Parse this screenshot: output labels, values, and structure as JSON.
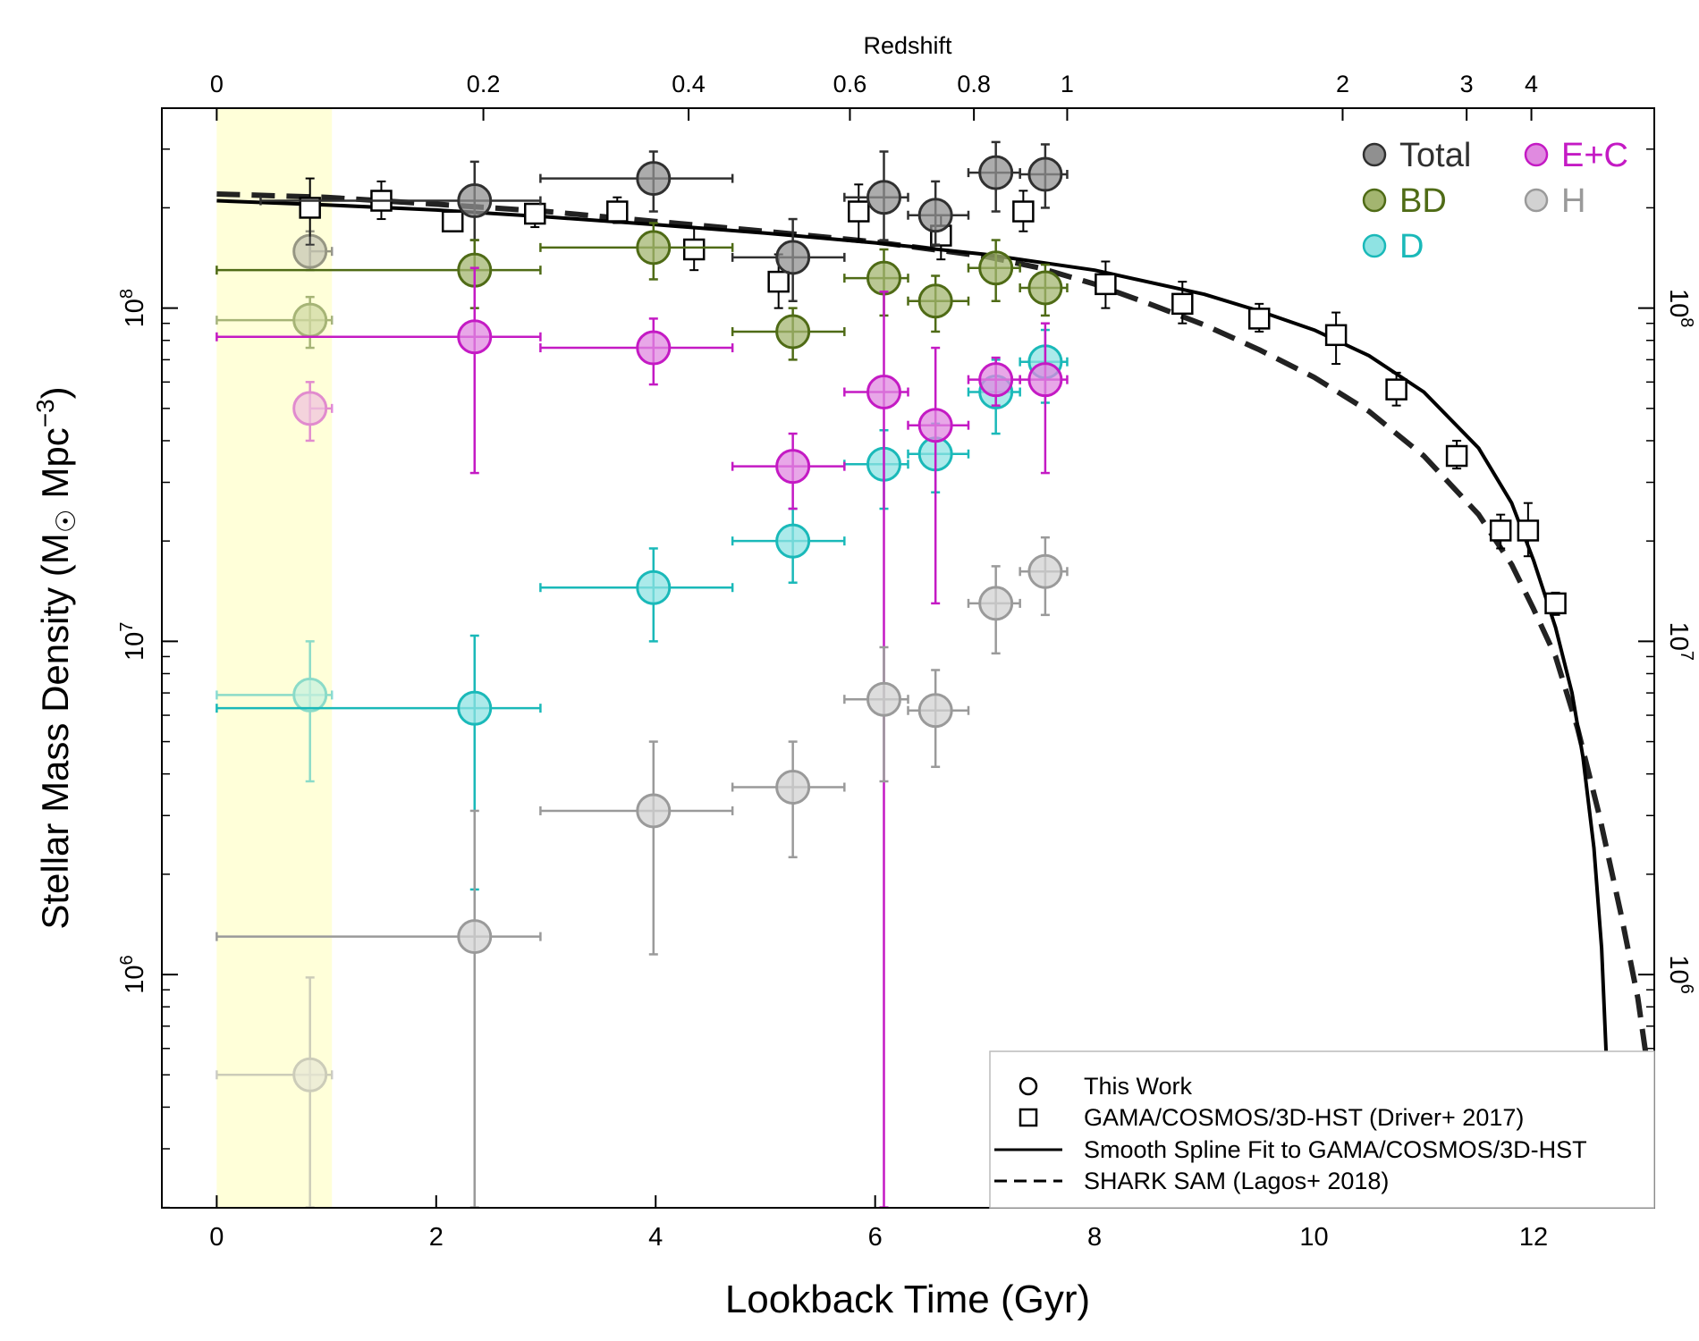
{
  "chart_data": {
    "type": "scatter",
    "xlabel": "Lookback Time (Gyr)",
    "ylabel_main": "Stellar Mass Density (M",
    "ylabel_unit": " Mpc",
    "ylabel_exp": "−3",
    "ylabel_close": ")",
    "top_axis_label": "Redshift",
    "xlim": [
      -0.5,
      13.1
    ],
    "ylim_log10": [
      5.3,
      8.6
    ],
    "x_ticks": [
      0,
      2,
      4,
      6,
      8,
      10,
      12
    ],
    "x_tick_labels": [
      "0",
      "2",
      "4",
      "6",
      "8",
      "10",
      "12"
    ],
    "y_ticks": [
      {
        "value": 1000000,
        "base": "10",
        "exp": "6"
      },
      {
        "value": 10000000,
        "base": "10",
        "exp": "7"
      },
      {
        "value": 100000000,
        "base": "10",
        "exp": "8"
      }
    ],
    "top_ticks": [
      {
        "label": "0",
        "t": 0
      },
      {
        "label": "0.2",
        "t": 2.43
      },
      {
        "label": "0.4",
        "t": 4.3
      },
      {
        "label": "0.6",
        "t": 5.77
      },
      {
        "label": "0.8",
        "t": 6.9
      },
      {
        "label": "1",
        "t": 7.75
      },
      {
        "label": "2",
        "t": 10.26
      },
      {
        "label": "3",
        "t": 11.39
      },
      {
        "label": "4",
        "t": 11.98
      }
    ],
    "shaded_region": {
      "x0": 0,
      "x1": 1.05,
      "color": "#ffffd9"
    },
    "colors": {
      "Total": {
        "fill": "#909090",
        "edge": "#303030"
      },
      "BD": {
        "fill": "#a3b570",
        "edge": "#4f6b16"
      },
      "D": {
        "fill": "#8fe3e3",
        "edge": "#1ab9b9"
      },
      "E+C": {
        "fill": "#e08ae0",
        "edge": "#c41ac4"
      },
      "H": {
        "fill": "#d2d2d2",
        "edge": "#9a9a9a"
      }
    },
    "legend_series": [
      {
        "label": "Total",
        "key": "Total",
        "text_color": "#303030"
      },
      {
        "label": "E+C",
        "key": "E+C",
        "text_color": "#c41ac4"
      },
      {
        "label": "BD",
        "key": "BD",
        "text_color": "#4f6b16"
      },
      {
        "label": "H",
        "key": "H",
        "text_color": "#9a9a9a"
      },
      {
        "label": "D",
        "key": "D",
        "text_color": "#1ab9b9"
      }
    ],
    "legend_markers": [
      {
        "label": "This Work",
        "marker": "circle"
      },
      {
        "label": "GAMA/COSMOS/3D-HST (Driver+ 2017)",
        "marker": "square"
      },
      {
        "label": "Smooth Spline Fit to GAMA/COSMOS/3D-HST",
        "marker": "solid-line"
      },
      {
        "label": "SHARK SAM (Lagos+ 2018)",
        "marker": "dashed-line"
      }
    ],
    "series": [
      {
        "name": "Total",
        "points": [
          {
            "x": 0.85,
            "y": 148000000.0,
            "xerr": [
              0.85,
              1.05
            ],
            "yerr": [
              130000000.0,
              170000000.0
            ],
            "faded": true
          },
          {
            "x": 2.35,
            "y": 210000000.0,
            "xerr": [
              0.4,
              2.95
            ],
            "yerr": [
              160000000.0,
              275000000.0
            ]
          },
          {
            "x": 3.98,
            "y": 245000000.0,
            "xerr": [
              2.95,
              4.7
            ],
            "yerr": [
              195000000.0,
              295000000.0
            ]
          },
          {
            "x": 5.25,
            "y": 142000000.0,
            "xerr": [
              4.7,
              5.72
            ],
            "yerr": [
              105000000.0,
              185000000.0
            ]
          },
          {
            "x": 6.08,
            "y": 215000000.0,
            "xerr": [
              5.72,
              6.3
            ],
            "yerr": [
              160000000.0,
              295000000.0
            ]
          },
          {
            "x": 6.55,
            "y": 190000000.0,
            "xerr": [
              6.3,
              6.85
            ],
            "yerr": [
              155000000.0,
              240000000.0
            ]
          },
          {
            "x": 7.1,
            "y": 255000000.0,
            "xerr": [
              6.85,
              7.32
            ],
            "yerr": [
              195000000.0,
              315000000.0
            ]
          },
          {
            "x": 7.55,
            "y": 252000000.0,
            "xerr": [
              7.32,
              7.75
            ],
            "yerr": [
              200000000.0,
              310000000.0
            ]
          }
        ]
      },
      {
        "name": "BD",
        "points": [
          {
            "x": 0.85,
            "y": 92000000.0,
            "xerr": [
              0.0,
              1.05
            ],
            "yerr": [
              76000000.0,
              108000000.0
            ],
            "faded": true
          },
          {
            "x": 2.35,
            "y": 130000000.0,
            "xerr": [
              0.0,
              2.95
            ],
            "yerr": [
              100000000.0,
              160000000.0
            ]
          },
          {
            "x": 3.98,
            "y": 152000000.0,
            "xerr": [
              2.95,
              4.7
            ],
            "yerr": [
              122000000.0,
              180000000.0
            ]
          },
          {
            "x": 5.25,
            "y": 85000000.0,
            "xerr": [
              4.7,
              5.72
            ],
            "yerr": [
              70000000.0,
              100000000.0
            ]
          },
          {
            "x": 6.08,
            "y": 123000000.0,
            "xerr": [
              5.72,
              6.3
            ],
            "yerr": [
              95000000.0,
              150000000.0
            ]
          },
          {
            "x": 6.55,
            "y": 105000000.0,
            "xerr": [
              6.3,
              6.85
            ],
            "yerr": [
              85000000.0,
              125000000.0
            ]
          },
          {
            "x": 7.1,
            "y": 132000000.0,
            "xerr": [
              6.85,
              7.32
            ],
            "yerr": [
              105000000.0,
              160000000.0
            ]
          },
          {
            "x": 7.55,
            "y": 115000000.0,
            "xerr": [
              7.32,
              7.75
            ],
            "yerr": [
              95000000.0,
              135000000.0
            ]
          }
        ]
      },
      {
        "name": "D",
        "points": [
          {
            "x": 0.85,
            "y": 6900000.0,
            "xerr": [
              0.0,
              1.05
            ],
            "yerr": [
              3800000.0,
              10000000.0
            ],
            "faded": true
          },
          {
            "x": 2.35,
            "y": 6300000.0,
            "xerr": [
              0.0,
              2.95
            ],
            "yerr": [
              1800000.0,
              10400000.0
            ]
          },
          {
            "x": 3.98,
            "y": 14500000.0,
            "xerr": [
              2.95,
              4.7
            ],
            "yerr": [
              10000000.0,
              19000000.0
            ]
          },
          {
            "x": 5.25,
            "y": 20000000.0,
            "xerr": [
              4.7,
              5.72
            ],
            "yerr": [
              15000000.0,
              25000000.0
            ]
          },
          {
            "x": 6.08,
            "y": 34000000.0,
            "xerr": [
              5.72,
              6.3
            ],
            "yerr": [
              25000000.0,
              43000000.0
            ]
          },
          {
            "x": 6.55,
            "y": 36500000.0,
            "xerr": [
              6.3,
              6.85
            ],
            "yerr": [
              28000000.0,
              45000000.0
            ]
          },
          {
            "x": 7.1,
            "y": 56000000.0,
            "xerr": [
              6.85,
              7.32
            ],
            "yerr": [
              42000000.0,
              70000000.0
            ]
          },
          {
            "x": 7.55,
            "y": 69000000.0,
            "xerr": [
              7.32,
              7.75
            ],
            "yerr": [
              52000000.0,
              86000000.0
            ]
          }
        ]
      },
      {
        "name": "E+C",
        "points": [
          {
            "x": 0.85,
            "y": 50000000.0,
            "xerr": [
              0.85,
              1.05
            ],
            "yerr": [
              40000000.0,
              60000000.0
            ],
            "faded": true
          },
          {
            "x": 2.35,
            "y": 82000000.0,
            "xerr": [
              0.0,
              2.95
            ],
            "yerr": [
              32000000.0,
              132000000.0
            ]
          },
          {
            "x": 3.98,
            "y": 76000000.0,
            "xerr": [
              2.95,
              4.7
            ],
            "yerr": [
              59000000.0,
              93000000.0
            ]
          },
          {
            "x": 5.25,
            "y": 33500000.0,
            "xerr": [
              4.7,
              5.72
            ],
            "yerr": [
              25000000.0,
              42000000.0
            ]
          },
          {
            "x": 6.08,
            "y": 56000000.0,
            "xerr": [
              5.72,
              6.3
            ],
            "yerr": [
              200000.0,
              112000000.0
            ]
          },
          {
            "x": 6.55,
            "y": 44500000.0,
            "xerr": [
              6.3,
              6.85
            ],
            "yerr": [
              13000000.0,
              76000000.0
            ]
          },
          {
            "x": 7.1,
            "y": 61000000.0,
            "xerr": [
              6.85,
              7.32
            ],
            "yerr": [
              51000000.0,
              71000000.0
            ]
          },
          {
            "x": 7.55,
            "y": 61000000.0,
            "xerr": [
              7.32,
              7.75
            ],
            "yerr": [
              32000000.0,
              90000000.0
            ]
          }
        ]
      },
      {
        "name": "H",
        "points": [
          {
            "x": 0.85,
            "y": 500000.0,
            "xerr": [
              0.0,
              1.05
            ],
            "yerr": [
              200000.0,
              980000.0
            ],
            "faded": true
          },
          {
            "x": 2.35,
            "y": 1300000.0,
            "xerr": [
              0.0,
              2.95
            ],
            "yerr": [
              200000.0,
              3100000.0
            ]
          },
          {
            "x": 3.98,
            "y": 3100000.0,
            "xerr": [
              2.95,
              4.7
            ],
            "yerr": [
              1150000.0,
              5000000.0
            ]
          },
          {
            "x": 5.25,
            "y": 3650000.0,
            "xerr": [
              4.7,
              5.72
            ],
            "yerr": [
              2250000.0,
              5000000.0
            ]
          },
          {
            "x": 6.08,
            "y": 6700000.0,
            "xerr": [
              5.72,
              6.3
            ],
            "yerr": [
              3800000.0,
              9600000.0
            ]
          },
          {
            "x": 6.55,
            "y": 6200000.0,
            "xerr": [
              6.3,
              6.85
            ],
            "yerr": [
              4200000.0,
              8200000.0
            ]
          },
          {
            "x": 7.1,
            "y": 13000000.0,
            "xerr": [
              6.85,
              7.32
            ],
            "yerr": [
              9200000.0,
              16800000.0
            ]
          },
          {
            "x": 7.55,
            "y": 16200000.0,
            "xerr": [
              7.32,
              7.75
            ],
            "yerr": [
              12000000.0,
              20500000.0
            ]
          }
        ]
      }
    ],
    "gama_points": [
      {
        "x": 0.85,
        "y": 200000000.0,
        "yerr": [
          155000000.0,
          245000000.0
        ]
      },
      {
        "x": 1.5,
        "y": 210000000.0,
        "yerr": [
          185000000.0,
          240000000.0
        ]
      },
      {
        "x": 2.15,
        "y": 182000000.0,
        "yerr": [
          170000000.0,
          195000000.0
        ]
      },
      {
        "x": 2.9,
        "y": 192000000.0,
        "yerr": [
          175000000.0,
          205000000.0
        ]
      },
      {
        "x": 3.65,
        "y": 195000000.0,
        "yerr": [
          180000000.0,
          215000000.0
        ]
      },
      {
        "x": 4.35,
        "y": 150000000.0,
        "yerr": [
          130000000.0,
          175000000.0
        ]
      },
      {
        "x": 5.12,
        "y": 120000000.0,
        "yerr": [
          100000000.0,
          145000000.0
        ]
      },
      {
        "x": 5.85,
        "y": 195000000.0,
        "yerr": [
          160000000.0,
          235000000.0
        ]
      },
      {
        "x": 6.6,
        "y": 165000000.0,
        "yerr": [
          140000000.0,
          190000000.0
        ]
      },
      {
        "x": 7.35,
        "y": 195000000.0,
        "yerr": [
          170000000.0,
          225000000.0
        ]
      },
      {
        "x": 8.1,
        "y": 118000000.0,
        "yerr": [
          100000000.0,
          138000000.0
        ]
      },
      {
        "x": 8.8,
        "y": 103000000.0,
        "yerr": [
          90000000.0,
          120000000.0
        ]
      },
      {
        "x": 9.5,
        "y": 93000000.0,
        "yerr": [
          85000000.0,
          103000000.0
        ]
      },
      {
        "x": 10.2,
        "y": 83000000.0,
        "yerr": [
          68000000.0,
          97000000.0
        ]
      },
      {
        "x": 10.75,
        "y": 57000000.0,
        "yerr": [
          51000000.0,
          64000000.0
        ]
      },
      {
        "x": 11.3,
        "y": 36000000.0,
        "yerr": [
          33000000.0,
          40000000.0
        ]
      },
      {
        "x": 11.7,
        "y": 21500000.0,
        "yerr": [
          19000000.0,
          24000000.0
        ]
      },
      {
        "x": 11.95,
        "y": 21500000.0,
        "yerr": [
          18000000.0,
          26000000.0
        ]
      },
      {
        "x": 12.2,
        "y": 13000000.0,
        "yerr": [
          12000000.0,
          14000000.0
        ]
      }
    ],
    "spline_fit": {
      "x": [
        0,
        1,
        2,
        3,
        4,
        5,
        6,
        7,
        8,
        9,
        9.5,
        10,
        10.5,
        11,
        11.5,
        11.8,
        12,
        12.2,
        12.35,
        12.45,
        12.55,
        12.62,
        12.67,
        12.7
      ],
      "y": [
        210000000.0,
        204000000.0,
        197000000.0,
        188000000.0,
        178000000.0,
        168000000.0,
        157000000.0,
        145000000.0,
        130000000.0,
        110000000.0,
        98000000.0,
        86000000.0,
        72000000.0,
        56000000.0,
        38000000.0,
        26000000.0,
        17500000.0,
        11000000.0,
        7000000.0,
        4500000.0,
        2400000.0,
        1200000.0,
        500000.0,
        200000.0
      ]
    },
    "shark_sam": {
      "x": [
        0,
        1,
        2,
        3,
        4,
        5,
        6,
        7,
        7.5,
        8,
        8.5,
        9,
        9.5,
        10,
        10.5,
        11,
        11.5,
        11.8,
        12,
        12.2,
        12.4,
        12.6,
        12.8,
        12.95,
        13.05,
        13.1
      ],
      "y": [
        220000000.0,
        215000000.0,
        205000000.0,
        195000000.0,
        182000000.0,
        170000000.0,
        158000000.0,
        143000000.0,
        132000000.0,
        118000000.0,
        103000000.0,
        89000000.0,
        75000000.0,
        62000000.0,
        49000000.0,
        36000000.0,
        24000000.0,
        17000000.0,
        12500000.0,
        9000000.0,
        5500000.0,
        3000000.0,
        1500000.0,
        850000.0,
        500000.0,
        300000.0
      ]
    }
  }
}
